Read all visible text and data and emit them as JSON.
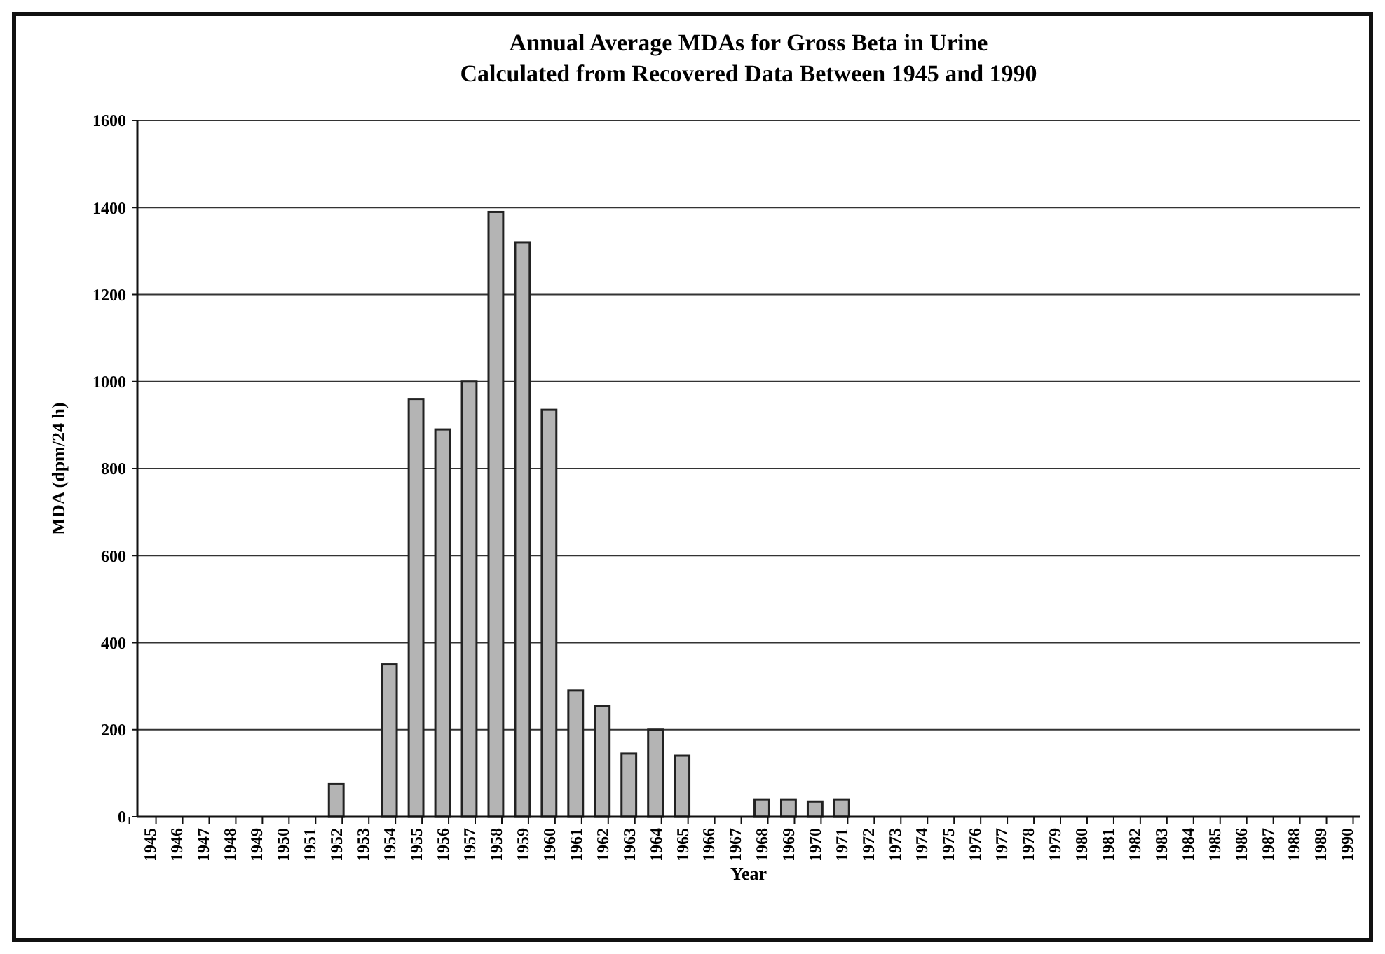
{
  "chart_data": {
    "type": "bar",
    "title": "Annual Average MDAs for Gross Beta in Urine\nCalculated from Recovered Data Between 1945 and 1990",
    "xlabel": "Year",
    "ylabel": "MDA (dpm/24 h)",
    "categories": [
      "1945",
      "1946",
      "1947",
      "1948",
      "1949",
      "1950",
      "1951",
      "1952",
      "1953",
      "1954",
      "1955",
      "1956",
      "1957",
      "1958",
      "1959",
      "1960",
      "1961",
      "1962",
      "1963",
      "1964",
      "1965",
      "1966",
      "1967",
      "1968",
      "1969",
      "1970",
      "1971",
      "1972",
      "1973",
      "1974",
      "1975",
      "1976",
      "1977",
      "1978",
      "1979",
      "1980",
      "1981",
      "1982",
      "1983",
      "1984",
      "1985",
      "1986",
      "1987",
      "1988",
      "1989",
      "1990"
    ],
    "values": [
      null,
      null,
      null,
      null,
      null,
      null,
      null,
      75,
      null,
      350,
      960,
      890,
      1000,
      1390,
      1320,
      935,
      290,
      255,
      145,
      200,
      140,
      null,
      null,
      40,
      40,
      35,
      40,
      null,
      null,
      null,
      null,
      null,
      null,
      null,
      null,
      null,
      null,
      null,
      null,
      null,
      null,
      null,
      null,
      null,
      null,
      null
    ],
    "color": "#b4b4b4",
    "ylim": [
      0,
      1600
    ],
    "yticks": [
      0,
      200,
      400,
      600,
      800,
      1000,
      1200,
      1400,
      1600
    ],
    "grid": "y"
  }
}
